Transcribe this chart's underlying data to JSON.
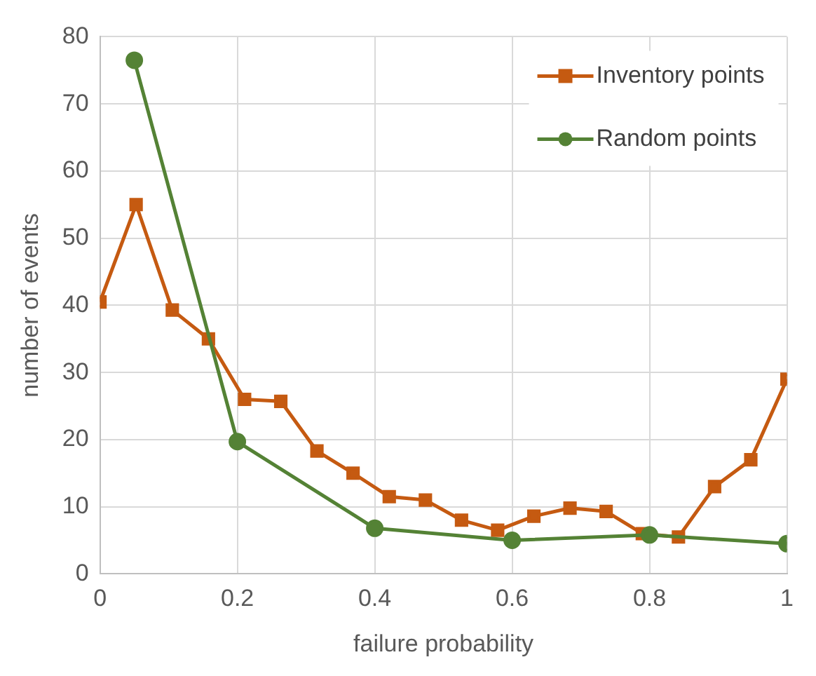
{
  "chart_data": {
    "type": "line",
    "xlabel": "failure probability",
    "ylabel": "number of events",
    "xlim": [
      0,
      1
    ],
    "xticks": [
      0,
      0.2,
      0.4,
      0.6,
      0.8,
      1
    ],
    "ylim": [
      0,
      80
    ],
    "yticks": [
      0,
      10,
      20,
      30,
      40,
      50,
      60,
      70,
      80
    ],
    "grid": true,
    "legend": "top right",
    "series": [
      {
        "name": "Inventory points",
        "color": "#c55a11",
        "marker": "square",
        "x": [
          0,
          0.0526,
          0.1053,
          0.1579,
          0.2105,
          0.2632,
          0.3158,
          0.3684,
          0.4211,
          0.4737,
          0.5263,
          0.5789,
          0.6316,
          0.6842,
          0.7368,
          0.7895,
          0.8421,
          0.8947,
          0.9474,
          1
        ],
        "values": [
          40.5,
          55,
          39.3,
          35,
          26,
          25.7,
          18.3,
          15,
          11.5,
          11,
          8,
          6.5,
          8.6,
          9.8,
          9.3,
          6,
          5.5,
          13,
          17,
          29
        ]
      },
      {
        "name": "Random points",
        "color": "#548235",
        "marker": "circle",
        "x": [
          0.05,
          0.2,
          0.4,
          0.6,
          0.8,
          1
        ],
        "values": [
          76.5,
          19.7,
          6.8,
          5,
          5.8,
          4.5
        ]
      }
    ]
  }
}
